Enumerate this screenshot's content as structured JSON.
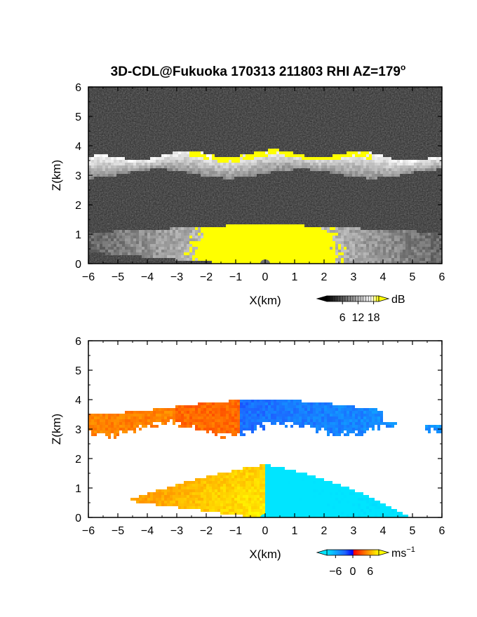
{
  "title": "3D-CDL@Fukuoka 170313 211803 RHI AZ=179",
  "title_superscript": "o",
  "chart_data": [
    {
      "type": "heatmap",
      "field": "backscatter",
      "xlabel": "X(km)",
      "ylabel": "Z(km)",
      "xlim": [
        -6,
        6
      ],
      "ylim": [
        0,
        6
      ],
      "xticks": [
        "−6",
        "−5",
        "−4",
        "−3",
        "−2",
        "−1",
        "0",
        "1",
        "2",
        "3",
        "4",
        "5",
        "6"
      ],
      "yticks": [
        "0",
        "1",
        "2",
        "3",
        "4",
        "5",
        "6"
      ],
      "colorbar": {
        "unit": "dB",
        "ticks": [
          "6",
          "12",
          "18"
        ],
        "tick_values": [
          6,
          12,
          18
        ],
        "range": [
          0,
          20
        ],
        "colors": [
          "#000000",
          "#ffffff",
          "#ffff00"
        ]
      },
      "features": [
        {
          "name": "cloud layer",
          "z_range": [
            3.0,
            3.9
          ],
          "x_range": [
            -6,
            6
          ],
          "peak_color": "#ffff00"
        },
        {
          "name": "boundary layer",
          "z_range": [
            0,
            1.4
          ],
          "x_range": [
            -6,
            6
          ],
          "peak_color": "#ffff00"
        }
      ]
    },
    {
      "type": "heatmap",
      "field": "radial velocity",
      "xlabel": "X(km)",
      "ylabel": "Z(km)",
      "xlim": [
        -6,
        6
      ],
      "ylim": [
        0,
        6
      ],
      "xticks": [
        "−6",
        "−5",
        "−4",
        "−3",
        "−2",
        "−1",
        "0",
        "1",
        "2",
        "3",
        "4",
        "5",
        "6"
      ],
      "yticks": [
        "0",
        "1",
        "2",
        "3",
        "4",
        "5",
        "6"
      ],
      "colorbar": {
        "unit": "ms",
        "unit_superscript": "−1",
        "ticks": [
          "−6",
          "0",
          "6"
        ],
        "tick_values": [
          -6,
          0,
          6
        ],
        "range": [
          -9,
          9
        ],
        "colors": [
          "#00e5ff",
          "#1e64ff",
          "#0000ff",
          "#ff0000",
          "#ff8000",
          "#ffff00"
        ]
      },
      "features": [
        {
          "name": "cloud layer",
          "z_range": [
            3.0,
            4.1
          ],
          "x_range": [
            -6,
            6
          ],
          "velocity_left": 4,
          "velocity_right": -4
        },
        {
          "name": "boundary layer",
          "z_range": [
            0,
            1.8
          ],
          "x_range": [
            -5.5,
            6
          ],
          "velocity_left": 6,
          "velocity_right": -6
        }
      ]
    }
  ]
}
